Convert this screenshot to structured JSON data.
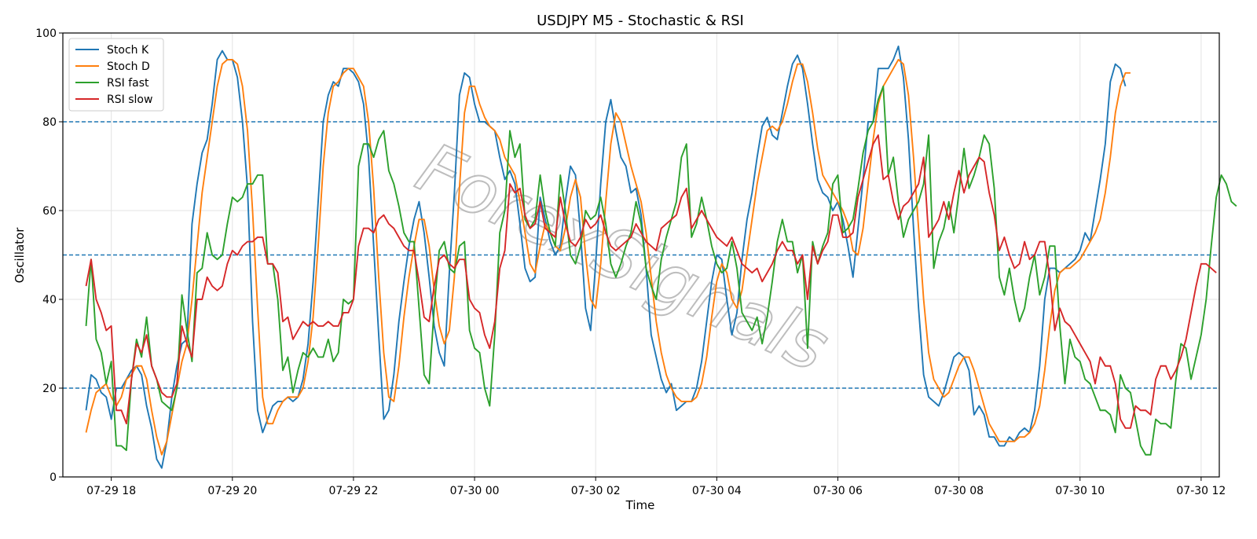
{
  "chart_data": {
    "type": "line",
    "title": "USDJPY M5 - Stochastic & RSI",
    "xlabel": "Time",
    "ylabel": "Oscillator",
    "ylim": [
      0,
      100
    ],
    "yticks": [
      0,
      20,
      40,
      60,
      80,
      100
    ],
    "x_start": "07-29 17:35",
    "x_step_minutes": 5,
    "xlim": [
      "07-29 17:12",
      "07-30 12:18"
    ],
    "xticks": [
      {
        "label": "07-29 18",
        "time": "07-29 18:00"
      },
      {
        "label": "07-29 20",
        "time": "07-29 20:00"
      },
      {
        "label": "07-29 22",
        "time": "07-29 22:00"
      },
      {
        "label": "07-30 00",
        "time": "07-30 00:00"
      },
      {
        "label": "07-30 02",
        "time": "07-30 02:00"
      },
      {
        "label": "07-30 04",
        "time": "07-30 04:00"
      },
      {
        "label": "07-30 06",
        "time": "07-30 06:00"
      },
      {
        "label": "07-30 08",
        "time": "07-30 08:00"
      },
      {
        "label": "07-30 10",
        "time": "07-30 10:00"
      },
      {
        "label": "07-30 12",
        "time": "07-30 12:00"
      }
    ],
    "reference_lines": [
      {
        "y": 80,
        "color": "#1f77b4",
        "style": "dashed"
      },
      {
        "y": 50,
        "color": "#1f77b4",
        "style": "dashed"
      },
      {
        "y": 20,
        "color": "#1f77b4",
        "style": "dashed"
      }
    ],
    "grid": true,
    "legend_position": "top-left",
    "watermark": "ForexSignals",
    "series": [
      {
        "name": "Stoch K",
        "color": "#1f77b4",
        "values": [
          15,
          23,
          22,
          19,
          18,
          13,
          20,
          20,
          22,
          24,
          25,
          23,
          16,
          11,
          4,
          2,
          8,
          18,
          25,
          30,
          31,
          57,
          66,
          73,
          76,
          84,
          94,
          96,
          94,
          94,
          90,
          80,
          65,
          35,
          15,
          10,
          13,
          16,
          17,
          17,
          18,
          17,
          18,
          22,
          30,
          44,
          62,
          80,
          86,
          89,
          88,
          92,
          92,
          91,
          89,
          84,
          72,
          52,
          32,
          13,
          15,
          23,
          35,
          44,
          52,
          58,
          62,
          55,
          45,
          34,
          28,
          25,
          46,
          64,
          86,
          91,
          90,
          84,
          80,
          80,
          79,
          78,
          72,
          67,
          69,
          66,
          57,
          47,
          44,
          45,
          63,
          58,
          53,
          50,
          52,
          62,
          70,
          68,
          55,
          38,
          33,
          48,
          66,
          80,
          85,
          78,
          72,
          70,
          64,
          65,
          59,
          47,
          32,
          27,
          22,
          19,
          21,
          15,
          16,
          17,
          17,
          20,
          26,
          35,
          44,
          50,
          49,
          40,
          32,
          37,
          49,
          58,
          64,
          72,
          79,
          81,
          77,
          76,
          82,
          88,
          93,
          95,
          92,
          84,
          75,
          67,
          64,
          63,
          60,
          62,
          58,
          52,
          45,
          56,
          67,
          80,
          80,
          92,
          92,
          92,
          94,
          97,
          90,
          76,
          56,
          38,
          23,
          18,
          17,
          16,
          19,
          23,
          27,
          28,
          27,
          24,
          14,
          16,
          14,
          9,
          9,
          7,
          7,
          9,
          8,
          10,
          11,
          10,
          15,
          25,
          40,
          47,
          47,
          46,
          47,
          48,
          49,
          51,
          55,
          53,
          60,
          67,
          75,
          89,
          93,
          92,
          88
        ]
      },
      {
        "name": "Stoch D",
        "color": "#ff7f0e",
        "values": [
          10,
          15,
          19,
          20,
          21,
          18,
          16,
          18,
          22,
          23,
          25,
          25,
          22,
          15,
          9,
          5,
          8,
          14,
          20,
          26,
          30,
          40,
          52,
          64,
          72,
          80,
          88,
          93,
          94,
          94,
          93,
          88,
          78,
          60,
          38,
          18,
          12,
          12,
          15,
          17,
          18,
          18,
          18,
          20,
          26,
          36,
          52,
          70,
          82,
          88,
          89,
          91,
          92,
          92,
          90,
          88,
          80,
          65,
          45,
          28,
          18,
          17,
          25,
          36,
          45,
          52,
          58,
          58,
          52,
          42,
          34,
          30,
          33,
          45,
          65,
          82,
          88,
          88,
          84,
          81,
          79,
          78,
          76,
          72,
          70,
          68,
          62,
          55,
          48,
          46,
          52,
          57,
          55,
          52,
          51,
          56,
          63,
          67,
          63,
          50,
          40,
          38,
          48,
          62,
          75,
          82,
          80,
          75,
          70,
          66,
          62,
          55,
          45,
          35,
          28,
          23,
          20,
          18,
          17,
          17,
          17,
          18,
          21,
          27,
          36,
          44,
          48,
          46,
          40,
          38,
          42,
          50,
          58,
          66,
          72,
          78,
          79,
          78,
          80,
          84,
          89,
          93,
          93,
          89,
          82,
          74,
          68,
          66,
          64,
          62,
          60,
          57,
          51,
          50,
          56,
          66,
          76,
          84,
          88,
          90,
          92,
          94,
          93,
          86,
          72,
          56,
          40,
          28,
          22,
          20,
          18,
          19,
          22,
          25,
          27,
          27,
          24,
          20,
          16,
          12,
          10,
          8,
          8,
          8,
          8,
          9,
          9,
          10,
          12,
          16,
          24,
          34,
          42,
          46,
          47,
          47,
          48,
          49,
          51,
          53,
          55,
          58,
          64,
          72,
          82,
          88,
          91,
          91
        ]
      },
      {
        "name": "RSI fast",
        "color": "#2ca02c",
        "values": [
          34,
          49,
          31,
          28,
          21,
          26,
          7,
          7,
          6,
          22,
          31,
          27,
          36,
          25,
          22,
          17,
          16,
          15,
          20,
          41,
          33,
          26,
          46,
          47,
          55,
          50,
          49,
          50,
          57,
          63,
          62,
          63,
          66,
          66,
          68,
          68,
          48,
          48,
          40,
          24,
          27,
          19,
          24,
          28,
          27,
          29,
          27,
          27,
          31,
          26,
          28,
          40,
          39,
          40,
          70,
          75,
          75,
          72,
          76,
          78,
          69,
          66,
          61,
          55,
          53,
          53,
          38,
          23,
          21,
          38,
          51,
          53,
          47,
          46,
          52,
          53,
          33,
          29,
          28,
          20,
          16,
          32,
          55,
          60,
          78,
          72,
          75,
          58,
          56,
          58,
          68,
          60,
          55,
          52,
          68,
          60,
          50,
          48,
          52,
          60,
          58,
          59,
          63,
          57,
          48,
          45,
          48,
          52,
          55,
          62,
          57,
          47,
          43,
          40,
          49,
          54,
          58,
          62,
          72,
          75,
          54,
          57,
          63,
          58,
          52,
          48,
          46,
          47,
          53,
          47,
          37,
          35,
          33,
          36,
          30,
          36,
          44,
          53,
          58,
          53,
          53,
          46,
          50,
          29,
          53,
          48,
          52,
          55,
          66,
          68,
          55,
          56,
          58,
          65,
          73,
          78,
          80,
          85,
          88,
          68,
          72,
          62,
          54,
          58,
          60,
          62,
          66,
          77,
          47,
          53,
          56,
          62,
          55,
          64,
          74,
          65,
          68,
          72,
          77,
          75,
          65,
          45,
          41,
          47,
          40,
          35,
          38,
          45,
          50,
          41,
          45,
          52,
          52,
          34,
          21,
          31,
          27,
          26,
          22,
          21,
          18,
          15,
          15,
          14,
          10,
          23,
          20,
          19,
          13,
          7,
          5,
          5,
          13,
          12,
          12,
          11,
          22,
          30,
          29,
          22,
          27,
          32,
          40,
          52,
          63,
          68,
          66,
          62,
          61
        ]
      },
      {
        "name": "RSI slow",
        "color": "#d62728",
        "values": [
          43,
          49,
          40,
          37,
          33,
          34,
          15,
          15,
          12,
          22,
          30,
          28,
          32,
          25,
          22,
          19,
          18,
          18,
          21,
          34,
          30,
          27,
          40,
          40,
          45,
          43,
          42,
          43,
          48,
          51,
          50,
          52,
          53,
          53,
          54,
          54,
          48,
          48,
          46,
          35,
          36,
          31,
          33,
          35,
          34,
          35,
          34,
          34,
          35,
          34,
          34,
          37,
          37,
          40,
          52,
          56,
          56,
          55,
          58,
          59,
          57,
          56,
          54,
          52,
          51,
          51,
          44,
          36,
          35,
          43,
          49,
          50,
          48,
          47,
          49,
          49,
          40,
          38,
          37,
          32,
          29,
          35,
          47,
          51,
          66,
          64,
          65,
          59,
          56,
          57,
          62,
          56,
          55,
          54,
          63,
          57,
          53,
          52,
          54,
          58,
          56,
          57,
          59,
          55,
          52,
          51,
          52,
          53,
          54,
          57,
          55,
          53,
          52,
          51,
          56,
          57,
          58,
          59,
          63,
          65,
          56,
          58,
          60,
          58,
          56,
          54,
          53,
          52,
          54,
          51,
          48,
          47,
          46,
          47,
          44,
          46,
          48,
          51,
          53,
          51,
          51,
          48,
          50,
          40,
          52,
          48,
          51,
          53,
          59,
          59,
          54,
          54,
          55,
          63,
          67,
          71,
          75,
          77,
          67,
          68,
          62,
          58,
          61,
          62,
          64,
          66,
          72,
          54,
          56,
          58,
          62,
          58,
          64,
          69,
          64,
          68,
          70,
          72,
          71,
          64,
          59,
          51,
          54,
          50,
          47,
          48,
          53,
          49,
          50,
          53,
          53,
          45,
          33,
          38,
          35,
          34,
          32,
          30,
          28,
          26,
          21,
          27,
          25,
          25,
          21,
          13,
          11,
          11,
          16,
          15,
          15,
          14,
          22,
          25,
          25,
          22,
          24,
          27,
          31,
          37,
          43,
          48,
          48,
          47,
          46
        ]
      }
    ]
  }
}
